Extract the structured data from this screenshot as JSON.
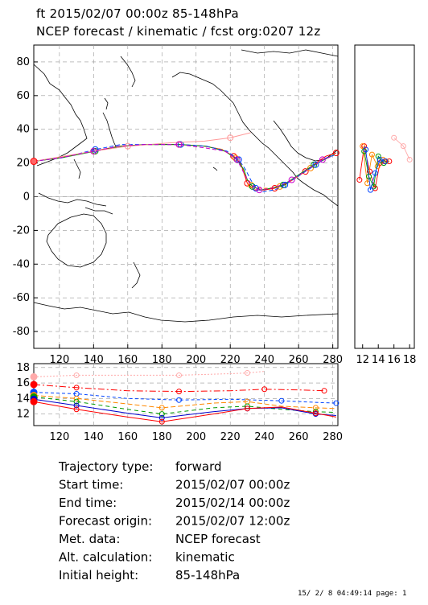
{
  "header": {
    "line1": "ft 2015/02/07 00:00z  85-148hPa",
    "line2": "NCEP forecast / kinematic / fcst org:0207 12z"
  },
  "chart_data": [
    {
      "type": "line",
      "panel": "map",
      "x_ticks": [
        "120",
        "140",
        "160",
        "180",
        "200",
        "220",
        "240",
        "260",
        "280"
      ],
      "y_ticks": [
        "80",
        "60",
        "40",
        "20",
        "0",
        "-20",
        "-40",
        "-60",
        "-80"
      ],
      "xlim": [
        105,
        283
      ],
      "ylim": [
        -90,
        90
      ],
      "grid": true,
      "series": [
        {
          "color": "#ff0000",
          "points": [
            [
              105,
              21
            ],
            [
              120,
              23
            ],
            [
              140,
              27
            ],
            [
              155,
              30
            ],
            [
              170,
              31
            ],
            [
              190,
              31
            ],
            [
              205,
              30
            ],
            [
              215,
              28
            ],
            [
              222,
              24
            ],
            [
              226,
              20
            ],
            [
              228,
              14
            ],
            [
              230,
              8
            ],
            [
              234,
              4
            ],
            [
              240,
              4
            ],
            [
              246,
              5
            ],
            [
              252,
              7
            ],
            [
              258,
              11
            ],
            [
              264,
              15
            ],
            [
              270,
              20
            ],
            [
              276,
              24
            ],
            [
              282,
              26
            ]
          ]
        },
        {
          "color": "#ff8800",
          "points": [
            [
              105,
              21
            ],
            [
              120,
              23
            ],
            [
              140,
              27
            ],
            [
              155,
              30
            ],
            [
              170,
              31
            ],
            [
              190,
              31
            ],
            [
              205,
              30
            ],
            [
              216,
              28
            ],
            [
              223,
              23
            ],
            [
              227,
              18
            ],
            [
              229,
              12
            ],
            [
              232,
              7
            ],
            [
              236,
              5
            ],
            [
              242,
              5
            ],
            [
              249,
              6
            ],
            [
              255,
              9
            ],
            [
              261,
              13
            ],
            [
              267,
              17
            ],
            [
              273,
              21
            ],
            [
              279,
              24
            ]
          ]
        },
        {
          "color": "#009900",
          "points": [
            [
              105,
              21
            ],
            [
              121,
              23
            ],
            [
              141,
              27
            ],
            [
              156,
              30
            ],
            [
              171,
              31
            ],
            [
              191,
              31
            ],
            [
              206,
              30
            ],
            [
              217,
              27
            ],
            [
              224,
              22
            ],
            [
              228,
              16
            ],
            [
              230,
              10
            ],
            [
              233,
              6
            ],
            [
              238,
              4
            ],
            [
              244,
              5
            ],
            [
              251,
              7
            ],
            [
              257,
              11
            ],
            [
              263,
              15
            ],
            [
              269,
              19
            ],
            [
              275,
              22
            ],
            [
              281,
              25
            ]
          ]
        },
        {
          "color": "#0044ff",
          "points": [
            [
              105,
              21
            ],
            [
              121,
              23
            ],
            [
              141,
              28
            ],
            [
              156,
              31
            ],
            [
              171,
              31
            ],
            [
              191,
              31
            ],
            [
              206,
              30
            ],
            [
              218,
              27
            ],
            [
              225,
              22
            ],
            [
              229,
              16
            ],
            [
              232,
              10
            ],
            [
              235,
              5
            ],
            [
              239,
              3
            ],
            [
              246,
              4
            ],
            [
              252,
              7
            ],
            [
              258,
              11
            ],
            [
              264,
              15
            ],
            [
              270,
              19
            ],
            [
              276,
              23
            ],
            [
              282,
              25
            ]
          ]
        },
        {
          "color": "#ff9999",
          "points": [
            [
              105,
              21
            ],
            [
              140,
              27
            ],
            [
              160,
              30
            ],
            [
              185,
              32
            ],
            [
              205,
              33
            ],
            [
              220,
              35
            ],
            [
              232,
              38
            ]
          ]
        },
        {
          "color": "#cc00cc",
          "points": [
            [
              105,
              21
            ],
            [
              120,
              23
            ],
            [
              140,
              27
            ],
            [
              155,
              30
            ],
            [
              170,
              31
            ],
            [
              190,
              31
            ],
            [
              205,
              29
            ],
            [
              217,
              27
            ],
            [
              224,
              22
            ],
            [
              228,
              14
            ],
            [
              232,
              7
            ],
            [
              237,
              4
            ],
            [
              244,
              5
            ],
            [
              250,
              7
            ],
            [
              256,
              10
            ],
            [
              262,
              14
            ],
            [
              268,
              18
            ],
            [
              274,
              22
            ],
            [
              280,
              24
            ]
          ]
        }
      ],
      "start": {
        "lon": 105,
        "lat": 21
      }
    },
    {
      "type": "scatter",
      "panel": "side",
      "x_ticks": [
        "12",
        "14",
        "16",
        "18"
      ],
      "xlim": [
        11,
        18.6
      ],
      "ylim": [
        -90,
        90
      ],
      "series": [
        {
          "color": "#ff0000",
          "points": [
            [
              11.6,
              10
            ],
            [
              12.2,
              30
            ],
            [
              12.9,
              15
            ],
            [
              13.6,
              5
            ],
            [
              14.2,
              20
            ],
            [
              14.8,
              21
            ],
            [
              15.4,
              21
            ]
          ]
        },
        {
          "color": "#ff8800",
          "points": [
            [
              12.0,
              30
            ],
            [
              12.6,
              8
            ],
            [
              13.2,
              25
            ],
            [
              13.9,
              18
            ],
            [
              14.6,
              22
            ],
            [
              15.0,
              21
            ]
          ]
        },
        {
          "color": "#009900",
          "points": [
            [
              12.2,
              27
            ],
            [
              12.8,
              12
            ],
            [
              13.4,
              6
            ],
            [
              14.0,
              24
            ],
            [
              14.7,
              20
            ]
          ]
        },
        {
          "color": "#0044ff",
          "points": [
            [
              12.4,
              28
            ],
            [
              13.0,
              4
            ],
            [
              13.6,
              14
            ],
            [
              14.2,
              22
            ],
            [
              14.9,
              21
            ]
          ]
        },
        {
          "color": "#ffaaaa",
          "points": [
            [
              16.0,
              35
            ],
            [
              17.2,
              30
            ],
            [
              18.0,
              22
            ]
          ]
        }
      ]
    },
    {
      "type": "line",
      "panel": "height",
      "x_ticks": [
        "120",
        "140",
        "160",
        "180",
        "200",
        "220",
        "240",
        "260",
        "280"
      ],
      "y_ticks": [
        "18",
        "16",
        "14",
        "12"
      ],
      "xlim": [
        105,
        283
      ],
      "ylim": [
        10.5,
        18.5
      ],
      "grid": true,
      "series": [
        {
          "color": "#ffaaaa",
          "points": [
            [
              105,
              16.8
            ],
            [
              130,
              17.0
            ],
            [
              160,
              17.0
            ],
            [
              190,
              17.0
            ],
            [
              220,
              17.2
            ],
            [
              230,
              17.3
            ],
            [
              240,
              17.5
            ]
          ]
        },
        {
          "color": "#ff0000",
          "points": [
            [
              105,
              15.8
            ],
            [
              130,
              15.4
            ],
            [
              160,
              15.0
            ],
            [
              190,
              14.9
            ],
            [
              220,
              15.0
            ],
            [
              240,
              15.2
            ],
            [
              260,
              15.1
            ],
            [
              275,
              15.0
            ]
          ]
        },
        {
          "color": "#0044ff",
          "points": [
            [
              105,
              14.8
            ],
            [
              130,
              14.6
            ],
            [
              160,
              14.0
            ],
            [
              190,
              13.8
            ],
            [
              220,
              13.9
            ],
            [
              250,
              13.7
            ],
            [
              270,
              13.5
            ],
            [
              282,
              13.4
            ]
          ]
        },
        {
          "color": "#ff8800",
          "points": [
            [
              105,
              14.4
            ],
            [
              130,
              14.0
            ],
            [
              160,
              13.3
            ],
            [
              180,
              12.8
            ],
            [
              210,
              13.4
            ],
            [
              230,
              13.6
            ],
            [
              250,
              13.0
            ],
            [
              270,
              12.8
            ],
            [
              282,
              12.7
            ]
          ]
        },
        {
          "color": "#009900",
          "points": [
            [
              105,
              14.2
            ],
            [
              130,
              13.6
            ],
            [
              160,
              12.6
            ],
            [
              180,
              12.0
            ],
            [
              210,
              12.8
            ],
            [
              230,
              13.0
            ],
            [
              250,
              12.6
            ],
            [
              270,
              12.3
            ],
            [
              282,
              12.2
            ]
          ]
        },
        {
          "color": "#0000cc",
          "points": [
            [
              105,
              13.9
            ],
            [
              130,
              13.1
            ],
            [
              160,
              12.1
            ],
            [
              180,
              11.5
            ],
            [
              210,
              12.3
            ],
            [
              230,
              12.7
            ],
            [
              250,
              12.8
            ],
            [
              270,
              12.0
            ],
            [
              282,
              11.8
            ]
          ]
        },
        {
          "color": "#ff0000",
          "points": [
            [
              105,
              13.6
            ],
            [
              130,
              12.6
            ],
            [
              160,
              11.6
            ],
            [
              180,
              11.0
            ],
            [
              210,
              12.0
            ],
            [
              230,
              12.7
            ],
            [
              250,
              12.9
            ],
            [
              270,
              12.1
            ],
            [
              282,
              11.6
            ]
          ]
        }
      ]
    }
  ],
  "info": {
    "rows": [
      {
        "label": "Trajectory type:",
        "value": "forward"
      },
      {
        "label": "Start time:",
        "value": "2015/02/07 00:00z"
      },
      {
        "label": "End time:",
        "value": "2015/02/14 00:00z"
      },
      {
        "label": "Forecast origin:",
        "value": "2015/02/07 12:00z"
      },
      {
        "label": "Met. data:",
        "value": "NCEP forecast"
      },
      {
        "label": "Alt. calculation:",
        "value": "kinematic"
      },
      {
        "label": "Initial height:",
        "value": "  85-148hPa"
      }
    ]
  },
  "footer": "15/ 2/ 8 04:49:14 page: 1"
}
